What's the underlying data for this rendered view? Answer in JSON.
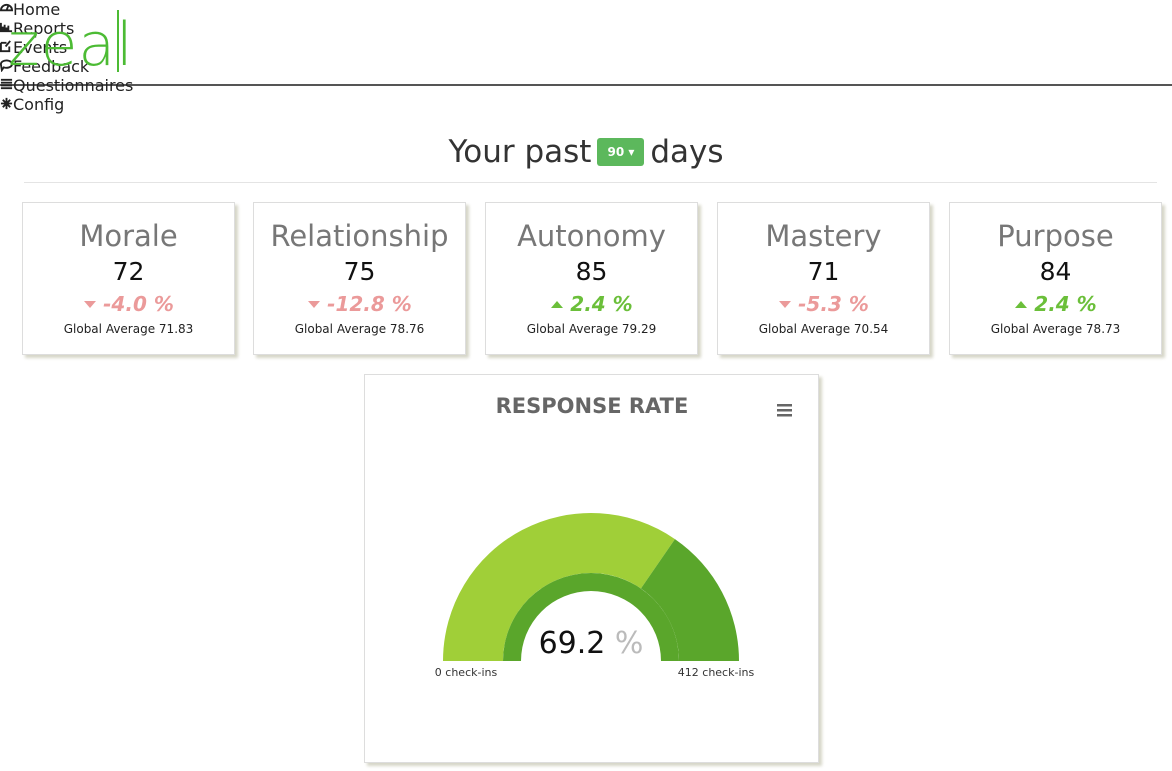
{
  "header": {
    "logo": "zeal",
    "nav": [
      "Home",
      "Reports",
      "Events",
      "Feedback",
      "Questionnaires",
      "Config"
    ]
  },
  "period": {
    "prefix": "Your past",
    "days": "90",
    "suffix": "days"
  },
  "cards": [
    {
      "title": "Morale",
      "score": "72",
      "change": "-4.0 %",
      "average_label": "Global Average",
      "average": "71.83"
    },
    {
      "title": "Relationship",
      "score": "75",
      "change": "-12.8 %",
      "average_label": "Global Average",
      "average": "78.76"
    },
    {
      "title": "Autonomy",
      "score": "85",
      "change": "2.4 %",
      "average_label": "Global Average",
      "average": "79.29"
    },
    {
      "title": "Mastery",
      "score": "71",
      "change": "-5.3 %",
      "average_label": "Global Average",
      "average": "70.54"
    },
    {
      "title": "Purpose",
      "score": "84",
      "change": "2.4 %",
      "average_label": "Global Average",
      "average": "78.73"
    }
  ],
  "gauge": {
    "title": "RESPONSE RATE",
    "value": 69.2,
    "unit": "%",
    "range": [
      0,
      100
    ],
    "min_label": "0 check-ins",
    "max_label": "412 check-ins"
  }
}
